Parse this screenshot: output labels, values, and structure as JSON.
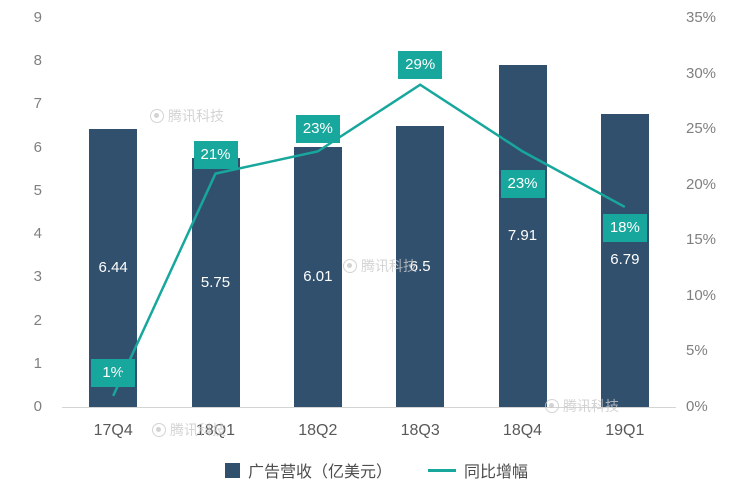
{
  "watermark": {
    "text": "腾讯科技"
  },
  "legend": [
    {
      "label": "广告营收（亿美元）",
      "color": "#31506d"
    },
    {
      "label": "同比增幅",
      "color": "#18a79c"
    }
  ],
  "chart_data": {
    "type": "bar+line",
    "title": "",
    "categories": [
      "17Q4",
      "18Q1",
      "18Q2",
      "18Q3",
      "18Q4",
      "19Q1"
    ],
    "series": [
      {
        "name": "广告营收（亿美元）",
        "type": "bar",
        "axis": "left",
        "color": "#31506d",
        "values": [
          6.44,
          5.75,
          6.01,
          6.5,
          7.91,
          6.79
        ],
        "value_labels": [
          "6.44",
          "5.75",
          "6.01",
          "6.5",
          "7.91",
          "6.79"
        ]
      },
      {
        "name": "同比增幅",
        "type": "line",
        "axis": "right",
        "color": "#18a79c",
        "values": [
          1,
          21,
          23,
          29,
          23,
          18
        ],
        "value_labels": [
          "1%",
          "21%",
          "23%",
          "29%",
          "23%",
          "18%"
        ]
      }
    ],
    "left_axis": {
      "min": 0,
      "max": 9,
      "step": 1,
      "ticks": [
        "0",
        "1",
        "2",
        "3",
        "4",
        "5",
        "6",
        "7",
        "8",
        "9"
      ]
    },
    "right_axis": {
      "min": 0,
      "max": 35,
      "step": 5,
      "ticks": [
        "0%",
        "5%",
        "10%",
        "15%",
        "20%",
        "25%",
        "30%",
        "35%"
      ]
    },
    "grid": false,
    "legend_position": "bottom"
  }
}
